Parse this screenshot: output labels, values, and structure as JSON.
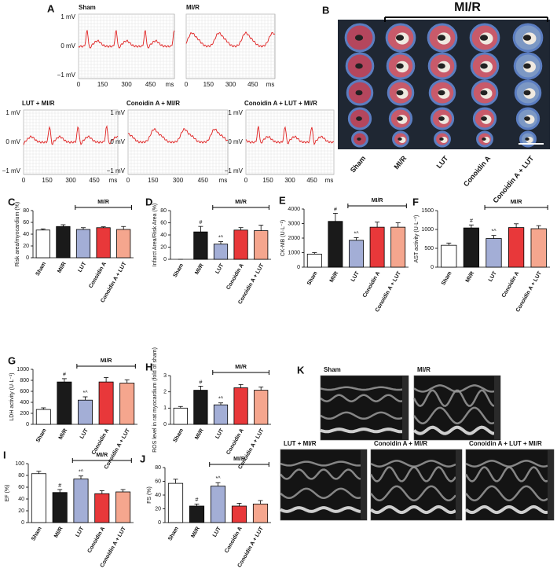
{
  "ecg": {
    "panel_label": "A",
    "ytick_labels": [
      "1 mV",
      "0 mV",
      "−1 mV"
    ],
    "xlim": [
      0,
      600
    ],
    "xticks": [
      0,
      150,
      300,
      450
    ],
    "x_unit": "ms",
    "traces": [
      "Sham",
      "MI/R",
      "LUT + MI/R",
      "Conoidin A + MI/R",
      "Conoidin A + LUT + MI/R"
    ]
  },
  "staining": {
    "panel_label": "B",
    "group_label": "MI/R",
    "lanes": [
      "Sham",
      "MI/R",
      "LUT",
      "Conoidin A",
      "Conoidin A + LUT"
    ]
  },
  "chart_data": [
    {
      "type": "bar",
      "panel_label": "C",
      "ylabel": "Risk area/myocardium (%)",
      "group_label": "MI/R",
      "categories": [
        "Sham",
        "MI/R",
        "LUT",
        "Conoidin A",
        "Conoidin A + LUT"
      ],
      "values": [
        47,
        53,
        48,
        51,
        48
      ],
      "errors": [
        2,
        3,
        3,
        1.5,
        5
      ],
      "significance": [
        null,
        null,
        null,
        null,
        null
      ],
      "colors": [
        "#ffffff",
        "#1a1a1a",
        "#a3aed6",
        "#e8383a",
        "#f5a68e"
      ],
      "ylim": [
        0,
        80
      ],
      "yticks": [
        0,
        20,
        40,
        60,
        80
      ]
    },
    {
      "type": "bar",
      "panel_label": "D",
      "ylabel": "Infarct Area/Risk Area (%)",
      "group_label": "MI/R",
      "categories": [
        "Sham",
        "MI/R",
        "LUT",
        "Conoidin A",
        "Conoidin A + LUT"
      ],
      "values": [
        0,
        45,
        25,
        48,
        47
      ],
      "errors": [
        0,
        9,
        4,
        4,
        9
      ],
      "significance": [
        null,
        "#",
        "*^",
        null,
        null
      ],
      "colors": [
        "#ffffff",
        "#1a1a1a",
        "#a3aed6",
        "#e8383a",
        "#f5a68e"
      ],
      "ylim": [
        0,
        80
      ],
      "yticks": [
        0,
        20,
        40,
        60,
        80
      ]
    },
    {
      "type": "bar",
      "panel_label": "E",
      "ylabel": "CK-MB (U·L⁻¹)",
      "group_label": "MI/R",
      "categories": [
        "Sham",
        "MI/R",
        "LUT",
        "Conoidin A",
        "Conoidin A + LUT"
      ],
      "values": [
        900,
        3150,
        1850,
        2750,
        2750
      ],
      "errors": [
        100,
        550,
        180,
        350,
        300
      ],
      "significance": [
        null,
        "#",
        "*^",
        null,
        null
      ],
      "colors": [
        "#ffffff",
        "#1a1a1a",
        "#a3aed6",
        "#e8383a",
        "#f5a68e"
      ],
      "ylim": [
        0,
        4000
      ],
      "yticks": [
        0,
        1000,
        2000,
        3000,
        4000
      ]
    },
    {
      "type": "bar",
      "panel_label": "F",
      "ylabel": "AST activity (U·L⁻¹)",
      "group_label": "MI/R",
      "categories": [
        "Sham",
        "MI/R",
        "LUT",
        "Conoidin A",
        "Conoidin A + LUT"
      ],
      "values": [
        580,
        1040,
        760,
        1050,
        1020
      ],
      "errors": [
        60,
        80,
        80,
        100,
        80
      ],
      "significance": [
        null,
        "#",
        "*^",
        null,
        null
      ],
      "colors": [
        "#ffffff",
        "#1a1a1a",
        "#a3aed6",
        "#e8383a",
        "#f5a68e"
      ],
      "ylim": [
        0,
        1500
      ],
      "yticks": [
        0,
        500,
        1000,
        1500
      ]
    },
    {
      "type": "bar",
      "panel_label": "G",
      "ylabel": "LDH activity (U·L⁻¹)",
      "group_label": "MI/R",
      "categories": [
        "Sham",
        "MI/R",
        "LUT",
        "Conoidin A",
        "Conoidin A + LUT"
      ],
      "values": [
        270,
        770,
        440,
        770,
        750
      ],
      "errors": [
        30,
        60,
        60,
        80,
        60
      ],
      "significance": [
        null,
        "#",
        "*^",
        null,
        null
      ],
      "colors": [
        "#ffffff",
        "#1a1a1a",
        "#a3aed6",
        "#e8383a",
        "#f5a68e"
      ],
      "ylim": [
        0,
        1000
      ],
      "yticks": [
        0,
        200,
        400,
        600,
        800,
        1000
      ]
    },
    {
      "type": "bar",
      "panel_label": "H",
      "ylabel": "ROS level in rat myocardium (fold of sham)",
      "group_label": "MI/R",
      "categories": [
        "Sham",
        "MI/R",
        "LUT",
        "Conoidin A",
        "Conoidin A + LUT"
      ],
      "values": [
        1.0,
        2.1,
        1.2,
        2.25,
        2.1
      ],
      "errors": [
        0.1,
        0.25,
        0.12,
        0.2,
        0.2
      ],
      "significance": [
        null,
        "#",
        "*^",
        null,
        null
      ],
      "colors": [
        "#ffffff",
        "#1a1a1a",
        "#a3aed6",
        "#e8383a",
        "#f5a68e"
      ],
      "ylim": [
        0,
        3
      ],
      "yticks": [
        0,
        1,
        2,
        3
      ]
    },
    {
      "type": "bar",
      "panel_label": "I",
      "ylabel": "EF (%)",
      "group_label": "MI/R",
      "categories": [
        "Sham",
        "MI/R",
        "LUT",
        "Conoidin A",
        "Conoidin A + LUT"
      ],
      "values": [
        83,
        51,
        74,
        49,
        52
      ],
      "errors": [
        4,
        5,
        5,
        5,
        4
      ],
      "significance": [
        null,
        "#",
        "*^",
        null,
        null
      ],
      "colors": [
        "#ffffff",
        "#1a1a1a",
        "#a3aed6",
        "#e8383a",
        "#f5a68e"
      ],
      "ylim": [
        0,
        100
      ],
      "yticks": [
        0,
        20,
        40,
        60,
        80,
        100
      ]
    },
    {
      "type": "bar",
      "panel_label": "J",
      "ylabel": "FS (%)",
      "group_label": "MI/R",
      "categories": [
        "Sham",
        "MI/R",
        "LUT",
        "Conoidin A",
        "Conoidin A + LUT"
      ],
      "values": [
        57,
        24,
        53,
        24,
        27
      ],
      "errors": [
        6,
        3,
        5,
        4,
        5
      ],
      "significance": [
        null,
        "#",
        "*^",
        null,
        null
      ],
      "colors": [
        "#ffffff",
        "#1a1a1a",
        "#a3aed6",
        "#e8383a",
        "#f5a68e"
      ],
      "ylim": [
        0,
        80
      ],
      "yticks": [
        0,
        20,
        40,
        60,
        80
      ]
    }
  ],
  "echo": {
    "panel_label": "K",
    "images": [
      "Sham",
      "MI/R",
      "LUT + MI/R",
      "Conoidin A + MI/R",
      "Conoidin A + LUT + MI/R"
    ]
  }
}
